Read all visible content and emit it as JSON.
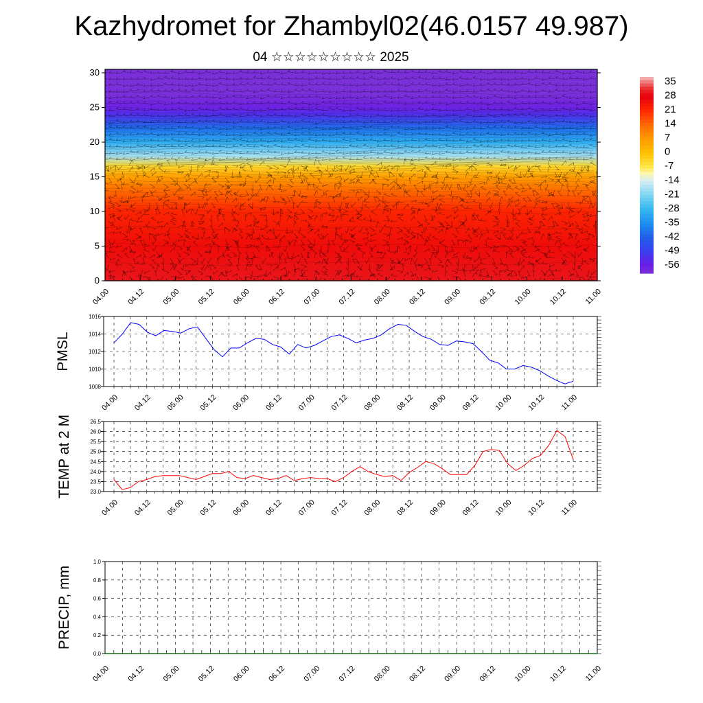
{
  "header": {
    "title": "Kazhydromet for Zhambyl02(46.0157 49.987)",
    "subtitle": "04 ☆☆☆☆☆☆☆☆☆ 2025"
  },
  "colors": {
    "background": "#ffffff",
    "pmsl_line": "#0000ff",
    "temp_line": "#ff0000",
    "grid": "#000000"
  },
  "chart_data": [
    {
      "type": "heatmap",
      "name": "cross-section",
      "x_ticks": [
        "04.00",
        "04.12",
        "05.00",
        "05.12",
        "06.00",
        "06.12",
        "07.00",
        "07.12",
        "08.00",
        "08.12",
        "09.00",
        "09.12",
        "10.00",
        "10.12",
        "11.00"
      ],
      "y_ticks": [
        "0",
        "5",
        "10",
        "15",
        "20",
        "25",
        "30"
      ],
      "ylim": [
        0,
        30.5
      ],
      "colorbar": {
        "labels": [
          "35",
          "28",
          "21",
          "14",
          "7",
          "0",
          "-7",
          "-14",
          "-21",
          "-28",
          "-35",
          "-42",
          "-49",
          "-56"
        ],
        "range": [
          -60,
          38
        ]
      },
      "profile_levels": [
        0,
        5,
        10,
        13,
        15,
        16.5,
        18,
        20,
        22,
        24,
        25,
        27,
        30.5
      ],
      "profile_temps": [
        30,
        26,
        22,
        14,
        6,
        -4,
        -18,
        -30,
        -40,
        -52,
        -57,
        -60,
        -60
      ]
    },
    {
      "type": "line",
      "name": "pmsl",
      "ylabel": "PMSL",
      "x_ticks": [
        "04.00",
        "04.12",
        "05.00",
        "05.12",
        "06.00",
        "06.12",
        "07.00",
        "07.12",
        "08.00",
        "08.12",
        "09.00",
        "09.12",
        "10.00",
        "10.12",
        "11.00"
      ],
      "y_ticks": [
        "1008",
        "1010",
        "1012",
        "1014",
        "1016"
      ],
      "ylim": [
        1008,
        1016
      ],
      "values": [
        1013.0,
        1014.0,
        1015.3,
        1015.1,
        1014.2,
        1013.8,
        1014.4,
        1014.3,
        1014.1,
        1014.6,
        1014.8,
        1013.5,
        1012.2,
        1011.4,
        1012.4,
        1012.4,
        1013.0,
        1013.5,
        1013.4,
        1012.8,
        1012.5,
        1011.7,
        1012.8,
        1012.4,
        1012.7,
        1013.2,
        1013.7,
        1013.9,
        1013.5,
        1013.0,
        1013.3,
        1013.5,
        1013.9,
        1014.6,
        1015.1,
        1015.0,
        1014.3,
        1013.7,
        1013.4,
        1012.8,
        1012.7,
        1013.2,
        1013.1,
        1012.9,
        1012.0,
        1011.0,
        1010.7,
        1010.0,
        1010.0,
        1010.4,
        1010.2,
        1009.8,
        1009.2,
        1008.7,
        1008.3,
        1008.6
      ]
    },
    {
      "type": "line",
      "name": "t2m",
      "ylabel": "TEMP at 2 M",
      "x_ticks": [
        "04.00",
        "04.12",
        "05.00",
        "05.12",
        "06.00",
        "06.12",
        "07.00",
        "07.12",
        "08.00",
        "08.12",
        "09.00",
        "09.12",
        "10.00",
        "10.12",
        "11.00"
      ],
      "y_ticks": [
        "23.0",
        "23.5",
        "24.0",
        "24.5",
        "25.0",
        "25.5",
        "26.0",
        "26.5"
      ],
      "ylim": [
        23.0,
        26.5
      ],
      "values": [
        23.6,
        23.1,
        23.2,
        23.5,
        23.6,
        23.75,
        23.8,
        23.8,
        23.8,
        23.7,
        23.6,
        23.75,
        23.9,
        23.9,
        24.0,
        23.7,
        23.65,
        23.8,
        23.7,
        23.6,
        23.65,
        23.8,
        23.55,
        23.65,
        23.7,
        23.65,
        23.65,
        23.5,
        23.7,
        24.0,
        24.25,
        24.0,
        23.85,
        23.75,
        23.8,
        23.55,
        23.95,
        24.2,
        24.5,
        24.4,
        24.15,
        23.85,
        23.85,
        23.85,
        24.3,
        25.0,
        25.1,
        25.05,
        24.4,
        24.05,
        24.3,
        24.65,
        24.8,
        25.3,
        26.05,
        25.75,
        24.6
      ]
    },
    {
      "type": "bar",
      "name": "precip",
      "ylabel": "PRECIP, mm",
      "x_ticks": [
        "04.00",
        "04.12",
        "05.00",
        "05.12",
        "06.00",
        "06.12",
        "07.00",
        "07.12",
        "08.00",
        "08.12",
        "09.00",
        "09.12",
        "10.00",
        "10.12",
        "11.00"
      ],
      "y_ticks": [
        "0.0",
        "0.2",
        "0.4",
        "0.6",
        "0.8",
        "1.0"
      ],
      "ylim": [
        0,
        1.0
      ],
      "values": []
    }
  ]
}
